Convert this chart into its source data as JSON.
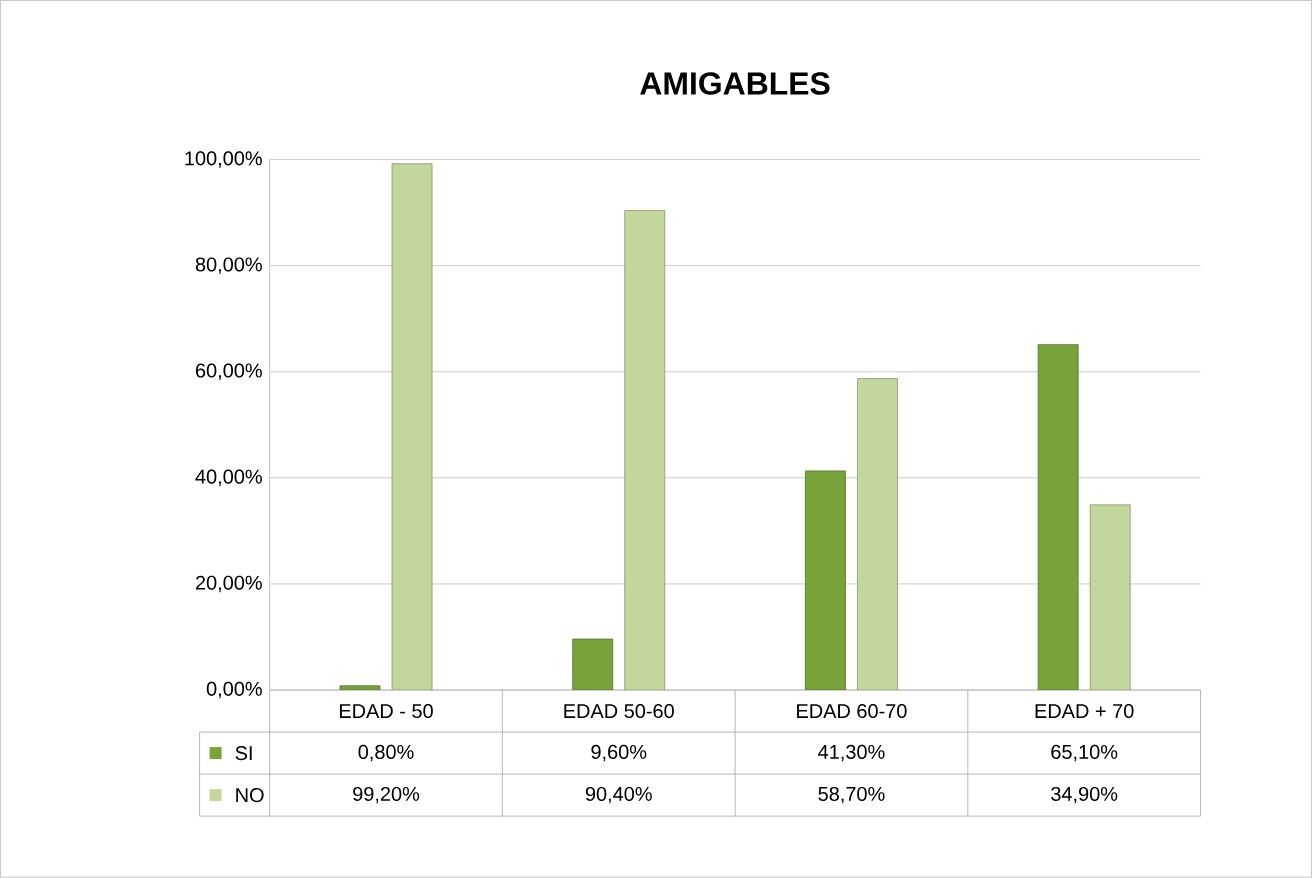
{
  "chart_data": {
    "type": "bar",
    "title": "AMIGABLES",
    "categories": [
      "EDAD - 50",
      "EDAD 50-60",
      "EDAD 60-70",
      "EDAD + 70"
    ],
    "series": [
      {
        "name": "SI",
        "color": "#77a33a",
        "values": [
          0.8,
          9.6,
          41.3,
          65.1
        ],
        "value_labels": [
          "0,80%",
          "9,60%",
          "41,30%",
          "65,10%"
        ]
      },
      {
        "name": "NO",
        "color": "#c3d69b",
        "values": [
          99.2,
          90.4,
          58.7,
          34.9
        ],
        "value_labels": [
          "99,20%",
          "90,40%",
          "58,70%",
          "34,90%"
        ]
      }
    ],
    "ylim": [
      0,
      100
    ],
    "yticks": [
      {
        "value": 0,
        "label": "0,00%"
      },
      {
        "value": 20,
        "label": "20,00%"
      },
      {
        "value": 40,
        "label": "40,00%"
      },
      {
        "value": 60,
        "label": "60,00%"
      },
      {
        "value": 80,
        "label": "80,00%"
      },
      {
        "value": 100,
        "label": "100,00%"
      }
    ],
    "grid": "y",
    "legend": "bottom"
  }
}
